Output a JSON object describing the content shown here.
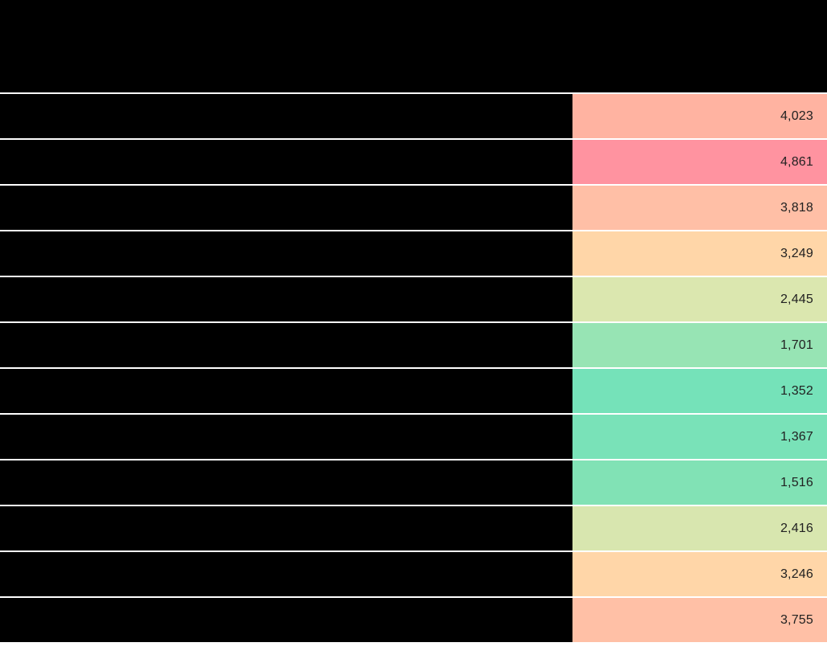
{
  "table": {
    "header": {
      "redacted": true,
      "note": "header band fully blacked out"
    },
    "columns": {
      "label_column_redacted": true,
      "value_column_align": "right"
    },
    "rows": [
      {
        "value": "4,023",
        "color": "#FFB3A1"
      },
      {
        "value": "4,861",
        "color": "#FF93A0"
      },
      {
        "value": "3,818",
        "color": "#FFBFA6"
      },
      {
        "value": "3,249",
        "color": "#FFD6A8"
      },
      {
        "value": "2,445",
        "color": "#DBE7AF"
      },
      {
        "value": "1,701",
        "color": "#97E4B4"
      },
      {
        "value": "1,352",
        "color": "#75E2B9"
      },
      {
        "value": "1,367",
        "color": "#79E2B8"
      },
      {
        "value": "1,516",
        "color": "#81E2B5"
      },
      {
        "value": "2,416",
        "color": "#D8E6AF"
      },
      {
        "value": "3,246",
        "color": "#FFD6A8"
      },
      {
        "value": "3,755",
        "color": "#FFC0A6"
      }
    ],
    "text_color": "#212121",
    "separator_color": "#FFFFFF"
  },
  "chart_data": {
    "type": "heatmap",
    "title": "",
    "rows": 12,
    "columns": 1,
    "values": [
      4023,
      4861,
      3818,
      3249,
      2445,
      1701,
      1352,
      1367,
      1516,
      2416,
      3246,
      3755
    ],
    "value_labels": [
      "4,023",
      "4,861",
      "3,818",
      "3,249",
      "2,445",
      "1,701",
      "1,352",
      "1,367",
      "1,516",
      "2,416",
      "3,246",
      "3,755"
    ],
    "row_labels": "redacted (blacked out in source image)",
    "colormap": "diverging red-yellow-green; high values red/pink, low values green",
    "colored_value_range": [
      1352,
      4861
    ],
    "grid": "white 2px separators between rows",
    "legend": "none visible"
  }
}
